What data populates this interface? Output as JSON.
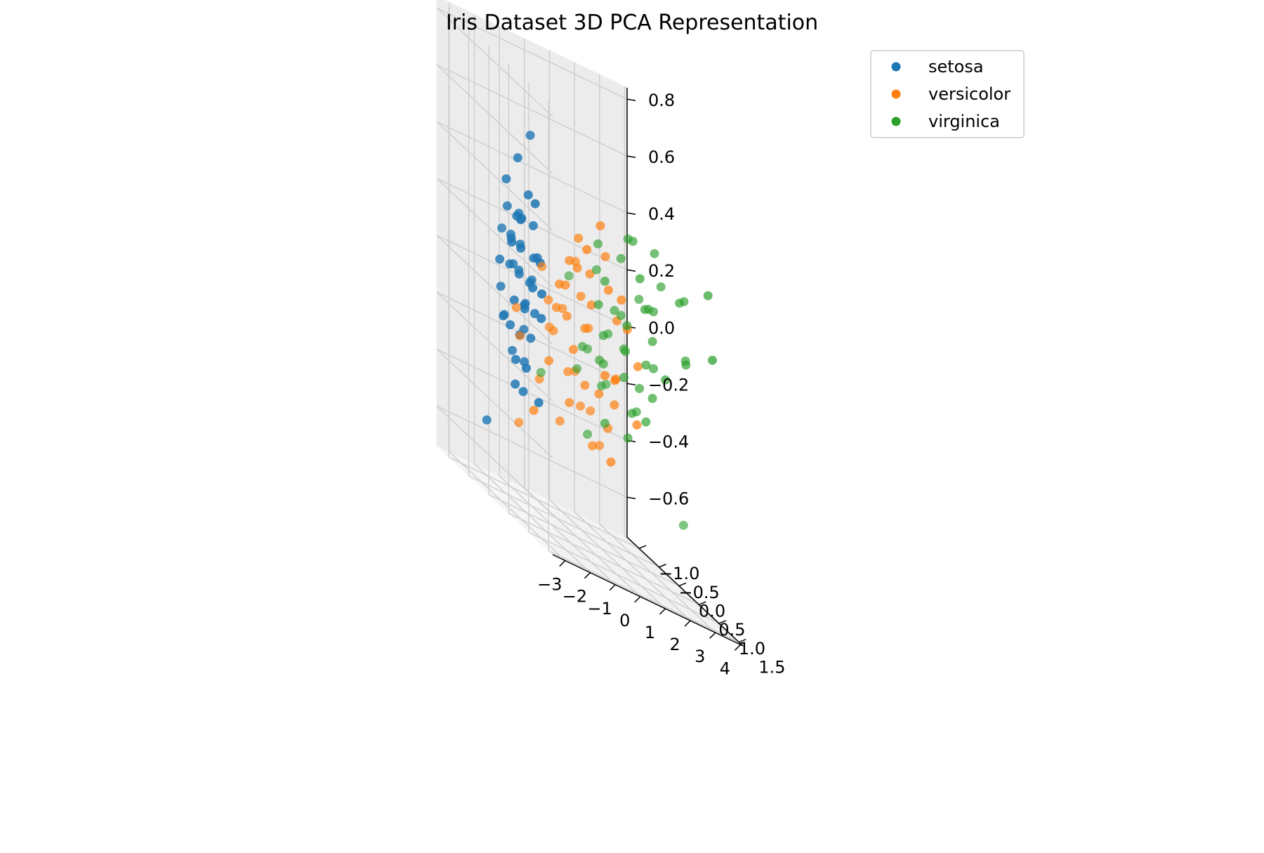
{
  "chart_data": {
    "type": "scatter",
    "projection": "3d",
    "title": "Iris Dataset 3D PCA Representation",
    "xlabel": "",
    "ylabel": "",
    "zlabel": "",
    "grid": true,
    "legend_position": "top-right",
    "axes": {
      "x": {
        "range": [
          -3.5,
          4.1
        ],
        "ticks": [
          -3,
          -2,
          -1,
          0,
          1,
          2,
          3,
          4
        ],
        "tick_labels": [
          "−3",
          "−2",
          "−1",
          "0",
          "1",
          "2",
          "3",
          "4"
        ]
      },
      "y": {
        "range": [
          -1.3,
          1.6
        ],
        "ticks": [
          -1.0,
          -0.5,
          0.0,
          0.5,
          1.0,
          1.5
        ],
        "tick_labels": [
          "−1.0",
          "−0.5",
          "0.0",
          "0.5",
          "1.0",
          "1.5"
        ]
      },
      "z": {
        "range": [
          -0.74,
          0.84
        ],
        "ticks": [
          -0.6,
          -0.4,
          -0.2,
          0.0,
          0.2,
          0.4,
          0.6,
          0.8
        ],
        "tick_labels": [
          "−0.6",
          "−0.4",
          "−0.2",
          "0.0",
          "0.2",
          "0.4",
          "0.6",
          "0.8"
        ]
      }
    },
    "series": [
      {
        "name": "setosa",
        "color": "#1f77b4",
        "points": [
          [
            -2.8,
            0.2,
            0.0
          ],
          [
            -2.6,
            0.1,
            -0.3
          ],
          [
            -2.9,
            0.4,
            -0.1
          ],
          [
            -2.5,
            -0.1,
            0.1
          ],
          [
            -2.7,
            0.3,
            0.2
          ],
          [
            -2.3,
            0.0,
            0.3
          ],
          [
            -2.4,
            0.2,
            -0.2
          ],
          [
            -2.6,
            -0.2,
            -0.1
          ],
          [
            -2.2,
            0.1,
            0.0
          ],
          [
            -2.8,
            0.0,
            0.4
          ],
          [
            -2.5,
            0.5,
            0.2
          ],
          [
            -2.4,
            -0.3,
            -0.1
          ],
          [
            -2.9,
            -0.1,
            0.1
          ],
          [
            -2.7,
            0.6,
            0.1
          ],
          [
            -2.3,
            0.4,
            0.0
          ],
          [
            -2.6,
            0.3,
            -0.3
          ],
          [
            -2.5,
            0.2,
            0.3
          ],
          [
            -2.2,
            -0.2,
            0.1
          ],
          [
            -2.8,
            0.5,
            -0.2
          ],
          [
            -2.4,
            0.1,
            0.2
          ],
          [
            -2.7,
            -0.2,
            0.0
          ],
          [
            -3.1,
            -0.3,
            -0.5
          ],
          [
            -2.3,
            0.3,
            -0.1
          ],
          [
            -2.6,
            0.0,
            0.2
          ],
          [
            -2.9,
            0.3,
            -0.2
          ],
          [
            -2.5,
            0.4,
            0.1
          ],
          [
            -2.2,
            0.5,
            0.0
          ],
          [
            -2.7,
            0.2,
            0.3
          ],
          [
            -2.4,
            -0.1,
            -0.2
          ],
          [
            -2.6,
            0.6,
            0.4
          ],
          [
            -2.3,
            0.0,
            0.1
          ],
          [
            -2.8,
            0.1,
            -0.1
          ],
          [
            -2.5,
            -0.3,
            0.2
          ],
          [
            -2.2,
            0.3,
            0.3
          ],
          [
            -2.7,
            0.4,
            0.0
          ],
          [
            -2.4,
            0.6,
            0.2
          ],
          [
            -2.1,
            0.2,
            0.1
          ],
          [
            -2.6,
            -0.1,
            0.3
          ],
          [
            -2.9,
            0.2,
            0.2
          ],
          [
            -2.3,
            0.5,
            -0.3
          ],
          [
            -2.5,
            0.1,
            0.5
          ],
          [
            -2.4,
            0.3,
            0.4
          ],
          [
            -2.1,
            0.0,
            -0.1
          ],
          [
            -2.6,
            0.2,
            0.1
          ],
          [
            -2.0,
            0.1,
            0.6
          ],
          [
            -2.3,
            -0.2,
            0.2
          ],
          [
            -2.7,
            0.3,
            0.3
          ],
          [
            -2.5,
            0.7,
            0.1
          ],
          [
            -2.2,
            0.4,
            0.2
          ],
          [
            -2.4,
            0.2,
            0.0
          ]
        ]
      },
      {
        "name": "versicolor",
        "color": "#ff7f0e",
        "points": [
          [
            1.3,
            0.7,
            -0.2
          ],
          [
            0.9,
            0.3,
            -0.4
          ],
          [
            1.5,
            0.6,
            0.0
          ],
          [
            0.2,
            -0.8,
            -0.1
          ],
          [
            1.1,
            0.1,
            -0.3
          ],
          [
            0.6,
            -0.4,
            0.2
          ],
          [
            1.3,
            0.2,
            0.1
          ],
          [
            -0.8,
            -1.0,
            -0.1
          ],
          [
            0.9,
            0.0,
            -0.2
          ],
          [
            0.0,
            -0.7,
            0.0
          ],
          [
            -0.5,
            -1.1,
            -0.2
          ],
          [
            0.5,
            -0.2,
            0.1
          ],
          [
            0.3,
            -0.6,
            -0.4
          ],
          [
            1.0,
            0.1,
            0.3
          ],
          [
            -0.2,
            -0.3,
            0.1
          ],
          [
            0.9,
            0.4,
            -0.1
          ],
          [
            0.7,
            -0.1,
            0.2
          ],
          [
            0.2,
            -0.3,
            -0.3
          ],
          [
            0.9,
            -0.6,
            -0.2
          ],
          [
            0.0,
            -0.5,
            0.0
          ],
          [
            1.1,
            0.3,
            -0.1
          ],
          [
            0.4,
            -0.2,
            0.3
          ],
          [
            1.2,
            -0.4,
            -0.3
          ],
          [
            0.8,
            -0.1,
            -0.4
          ],
          [
            0.6,
            0.0,
            0.1
          ],
          [
            0.8,
            0.3,
            0.2
          ],
          [
            1.2,
            0.2,
            -0.2
          ],
          [
            1.4,
            0.4,
            0.1
          ],
          [
            0.8,
            -0.2,
            0.0
          ],
          [
            -0.3,
            -0.5,
            -0.2
          ],
          [
            -0.1,
            -0.8,
            0.1
          ],
          [
            -0.2,
            -0.8,
            -0.3
          ],
          [
            0.1,
            -0.3,
            0.0
          ],
          [
            1.4,
            -0.3,
            -0.4
          ],
          [
            0.5,
            -0.1,
            -0.2
          ],
          [
            0.5,
            0.4,
            -0.1
          ],
          [
            1.0,
            0.5,
            0.2
          ],
          [
            0.8,
            -0.4,
            -0.3
          ],
          [
            0.2,
            -0.1,
            0.2
          ],
          [
            0.2,
            -0.7,
            -0.1
          ],
          [
            0.4,
            -0.6,
            0.0
          ],
          [
            0.8,
            0.1,
            0.4
          ],
          [
            0.2,
            -0.4,
            0.1
          ],
          [
            -0.7,
            -1.0,
            -0.5
          ],
          [
            0.3,
            -0.4,
            -0.2
          ],
          [
            0.1,
            0.2,
            0.3
          ],
          [
            0.2,
            -0.2,
            -0.1
          ],
          [
            0.5,
            -0.1,
            0.0
          ],
          [
            -0.9,
            -0.5,
            -0.4
          ],
          [
            0.2,
            -0.3,
            0.2
          ]
        ]
      },
      {
        "name": "virginica",
        "color": "#2ca02c",
        "points": [
          [
            2.5,
            0.0,
            0.2
          ],
          [
            1.4,
            -0.6,
            -0.4
          ],
          [
            2.6,
            0.3,
            0.0
          ],
          [
            2.0,
            -0.3,
            0.1
          ],
          [
            2.4,
            0.0,
            -0.2
          ],
          [
            3.4,
            0.6,
            0.1
          ],
          [
            0.5,
            -1.2,
            -0.3
          ],
          [
            2.9,
            0.3,
            0.3
          ],
          [
            2.3,
            -0.7,
            -0.2
          ],
          [
            3.0,
            0.7,
            0.3
          ],
          [
            1.7,
            0.2,
            0.1
          ],
          [
            1.9,
            -0.4,
            0.0
          ],
          [
            2.2,
            0.2,
            -0.1
          ],
          [
            1.3,
            -0.8,
            -0.2
          ],
          [
            1.6,
            -0.5,
            0.2
          ],
          [
            1.9,
            0.1,
            -0.3
          ],
          [
            1.9,
            0.0,
            0.0
          ],
          [
            3.5,
            1.1,
            0.4
          ],
          [
            3.8,
            0.3,
            -0.5
          ],
          [
            1.3,
            -1.0,
            0.1
          ],
          [
            2.4,
            0.3,
            0.2
          ],
          [
            1.2,
            -0.6,
            -0.1
          ],
          [
            3.5,
            0.5,
            0.3
          ],
          [
            1.4,
            -0.2,
            -0.1
          ],
          [
            2.3,
            0.3,
            -0.2
          ],
          [
            2.6,
            0.6,
            0.0
          ],
          [
            1.3,
            -0.1,
            -0.3
          ],
          [
            1.3,
            -0.1,
            0.2
          ],
          [
            2.1,
            -0.2,
            0.1
          ],
          [
            2.4,
            0.4,
            -0.1
          ],
          [
            2.8,
            0.2,
            0.4
          ],
          [
            3.2,
            1.4,
            0.2
          ],
          [
            2.1,
            -0.2,
            0.3
          ],
          [
            1.4,
            -0.2,
            0.0
          ],
          [
            1.8,
            -0.5,
            -0.2
          ],
          [
            3.1,
            0.8,
            0.1
          ],
          [
            2.1,
            0.1,
            0.4
          ],
          [
            1.9,
            0.0,
            -0.1
          ],
          [
            1.2,
            -0.2,
            0.1
          ],
          [
            2.1,
            0.4,
            0.2
          ],
          [
            2.3,
            0.3,
            0.0
          ],
          [
            1.9,
            0.4,
            0.3
          ],
          [
            1.4,
            -0.6,
            -0.1
          ],
          [
            2.6,
            0.3,
            0.2
          ],
          [
            2.4,
            0.4,
            0.1
          ],
          [
            1.9,
            0.2,
            -0.2
          ],
          [
            1.5,
            -0.4,
            0.3
          ],
          [
            1.8,
            0.1,
            0.0
          ],
          [
            1.9,
            0.1,
            0.4
          ],
          [
            1.4,
            -0.3,
            -0.1
          ]
        ]
      }
    ]
  }
}
